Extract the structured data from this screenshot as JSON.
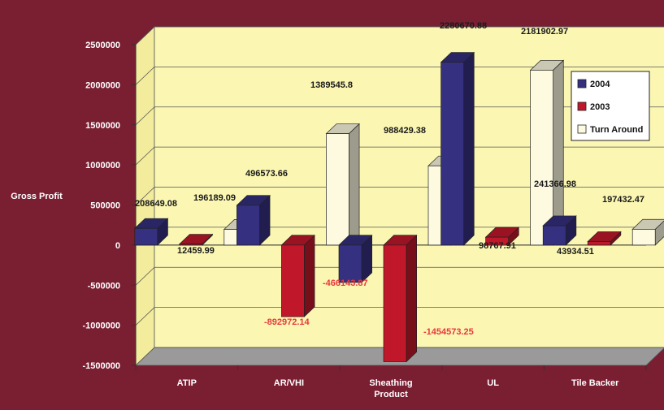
{
  "chart_data": {
    "type": "bar",
    "ylabel": "Gross Profit",
    "xlabel": "",
    "categories": [
      "ATIP",
      "AR/VHI",
      "Sheathing Product",
      "UL",
      "Tile Backer"
    ],
    "category_labels": [
      [
        "ATIP"
      ],
      [
        "AR/VHI"
      ],
      [
        "Sheathing",
        "Product"
      ],
      [
        "UL"
      ],
      [
        "Tile Backer"
      ]
    ],
    "ylim": [
      -1500000,
      2500000
    ],
    "yticks": [
      "2500000",
      "2000000",
      "1500000",
      "1000000",
      "500000",
      "0",
      "-500000",
      "-1000000",
      "-1500000"
    ],
    "grid": true,
    "legend_position": "right",
    "series": [
      {
        "name": "2004",
        "color": "#35307f",
        "values": [
          208649.08,
          496573.66,
          -466143.87,
          2280670.88,
          241366.98
        ],
        "labels": [
          "208649.08",
          "496573.66",
          "-466143.87",
          "2280670.88",
          "241366.98"
        ]
      },
      {
        "name": "2003",
        "color": "#c0182a",
        "values": [
          12459.99,
          -892972.14,
          -1454573.25,
          98767.91,
          43934.51
        ],
        "labels": [
          "12459.99",
          "-892972.14",
          "-1454573.25",
          "98767.91",
          "43934.51"
        ]
      },
      {
        "name": "Turn Around",
        "color": "#fdfae0",
        "values": [
          196189.09,
          1389545.8,
          988429.38,
          2181902.97,
          197432.47
        ],
        "labels": [
          "196189.09",
          "1389545.8",
          "988429.38",
          "2181902.97",
          "197432.47"
        ]
      }
    ]
  }
}
